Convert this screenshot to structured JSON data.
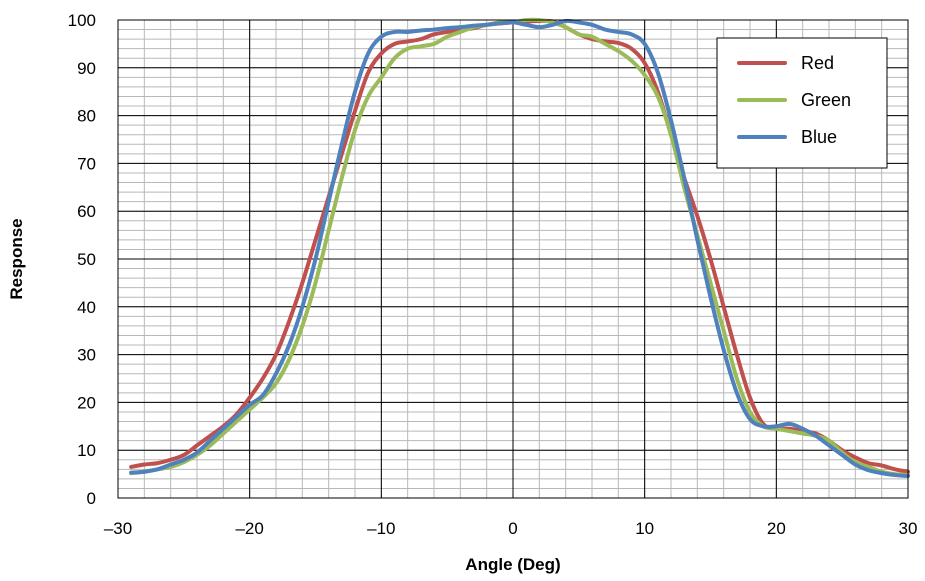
{
  "chart_data": {
    "type": "line",
    "xlabel": "Angle (Deg)",
    "ylabel": "Response",
    "xlim": [
      -30,
      30
    ],
    "ylim": [
      0,
      100
    ],
    "x_ticks": [
      -30,
      -20,
      -10,
      0,
      10,
      20,
      30
    ],
    "x_tick_labels": [
      "–30",
      "–20",
      "–10",
      "0",
      "10",
      "20",
      "30"
    ],
    "y_ticks": [
      0,
      10,
      20,
      30,
      40,
      50,
      60,
      70,
      80,
      90,
      100
    ],
    "y_tick_labels": [
      "0",
      "10",
      "20",
      "30",
      "40",
      "50",
      "60",
      "70",
      "80",
      "90",
      "100"
    ],
    "minor_grid_step": 2,
    "grid": true,
    "legend_position": "top-right",
    "series": [
      {
        "name": "Red",
        "color": "#c0504d",
        "x": [
          -29,
          -28,
          -27,
          -26,
          -25,
          -24,
          -23,
          -22,
          -21,
          -20,
          -19,
          -18,
          -17,
          -16,
          -15,
          -14,
          -13,
          -12,
          -11,
          -10,
          -9,
          -8,
          -7,
          -6,
          -5,
          -4,
          -3,
          -2,
          -1,
          0,
          1,
          2,
          3,
          4,
          5,
          6,
          7,
          8,
          9,
          10,
          11,
          12,
          13,
          14,
          15,
          16,
          17,
          18,
          19,
          20,
          21,
          22,
          23,
          24,
          25,
          26,
          27,
          28,
          29,
          30
        ],
        "y": [
          6.5,
          7,
          7.3,
          8,
          9,
          11,
          13,
          15,
          17.5,
          21,
          25,
          30,
          37,
          45,
          54,
          63,
          72,
          81,
          89,
          93,
          95,
          95.5,
          96,
          97,
          97.5,
          98,
          98.3,
          99,
          99.3,
          99.5,
          99.7,
          99.8,
          99.7,
          98.5,
          97,
          96,
          95.5,
          95.2,
          94,
          91,
          85,
          76,
          67,
          59,
          50,
          40,
          30,
          21,
          15.5,
          14.5,
          14.5,
          14,
          13.5,
          12,
          10,
          8.5,
          7.3,
          6.8,
          6,
          5.5
        ]
      },
      {
        "name": "Green",
        "color": "#9bbb59",
        "x": [
          -29,
          -28,
          -27,
          -26,
          -25,
          -24,
          -23,
          -22,
          -21,
          -20,
          -19,
          -18,
          -17,
          -16,
          -15,
          -14,
          -13,
          -12,
          -11,
          -10,
          -9,
          -8,
          -7,
          -6,
          -5,
          -4,
          -3,
          -2,
          -1,
          0,
          1,
          2,
          3,
          4,
          5,
          6,
          7,
          8,
          9,
          10,
          11,
          12,
          13,
          14,
          15,
          16,
          17,
          18,
          19,
          20,
          21,
          22,
          23,
          24,
          25,
          26,
          27,
          28,
          29,
          30
        ],
        "y": [
          5.2,
          5.5,
          6,
          6.5,
          7.5,
          9,
          11,
          13.5,
          16,
          18.5,
          21,
          24,
          29,
          36,
          45,
          56,
          67,
          77,
          84,
          88,
          92,
          94,
          94.5,
          95,
          96.5,
          97.5,
          98.5,
          99,
          99.5,
          99.5,
          100,
          100,
          99.5,
          98.5,
          97,
          96.5,
          95,
          93.5,
          91.5,
          88.5,
          84,
          76,
          65,
          55,
          45,
          35,
          25,
          18,
          15,
          14.5,
          14,
          13.5,
          13,
          12,
          9.5,
          7.5,
          6.5,
          5.5,
          5,
          4.8
        ]
      },
      {
        "name": "Blue",
        "color": "#4f81bd",
        "x": [
          -29,
          -28,
          -27,
          -26,
          -25,
          -24,
          -23,
          -22,
          -21,
          -20,
          -19,
          -18,
          -17,
          -16,
          -15,
          -14,
          -13,
          -12,
          -11,
          -10,
          -9,
          -8,
          -7,
          -6,
          -5,
          -4,
          -3,
          -2,
          -1,
          0,
          1,
          2,
          3,
          4,
          5,
          6,
          7,
          8,
          9,
          10,
          11,
          12,
          13,
          14,
          15,
          16,
          17,
          18,
          19,
          20,
          21,
          22,
          23,
          24,
          25,
          26,
          27,
          28,
          29,
          30
        ],
        "y": [
          5.3,
          5.5,
          6,
          7,
          8,
          9.5,
          12,
          14.5,
          17,
          19.5,
          21.5,
          26,
          32,
          40,
          50,
          62,
          74,
          85,
          93,
          96.5,
          97.5,
          97.5,
          97.8,
          98,
          98.3,
          98.5,
          98.8,
          99,
          99.3,
          99.5,
          99,
          98.5,
          99,
          99.8,
          99.5,
          99,
          98,
          97.5,
          97,
          95,
          89,
          79,
          67,
          54,
          42,
          31,
          22,
          16.5,
          15,
          15,
          15.5,
          14.5,
          13,
          11,
          9,
          7,
          5.8,
          5.2,
          4.8,
          4.6
        ]
      }
    ]
  }
}
